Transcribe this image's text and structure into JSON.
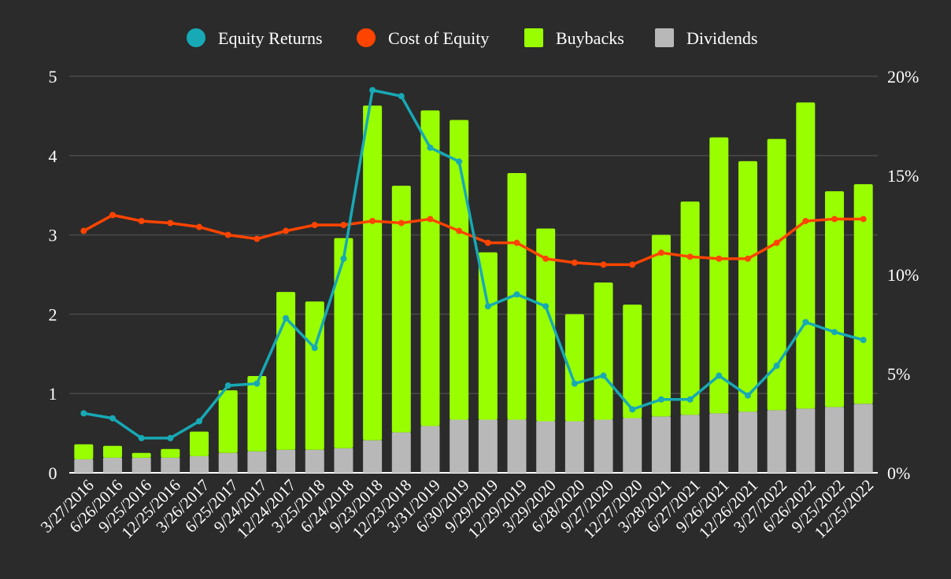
{
  "chart_data": {
    "type": "bar",
    "categories": [
      "3/27/2016",
      "6/26/2016",
      "9/25/2016",
      "12/25/2016",
      "3/26/2017",
      "6/25/2017",
      "9/24/2017",
      "12/24/2017",
      "3/25/2018",
      "6/24/2018",
      "9/23/2018",
      "12/23/2018",
      "3/31/2019",
      "6/30/2019",
      "9/29/2019",
      "12/29/2019",
      "3/29/2020",
      "6/28/2020",
      "9/27/2020",
      "12/27/2020",
      "3/28/2021",
      "6/27/2021",
      "9/26/2021",
      "12/26/2021",
      "3/27/2022",
      "6/26/2022",
      "9/25/2022",
      "12/25/2022"
    ],
    "series": [
      {
        "name": "Dividends",
        "type": "bar",
        "axis": "left",
        "color": "#b8b8b8",
        "values": [
          0.17,
          0.19,
          0.19,
          0.19,
          0.21,
          0.25,
          0.27,
          0.29,
          0.29,
          0.31,
          0.41,
          0.51,
          0.59,
          0.67,
          0.67,
          0.67,
          0.65,
          0.65,
          0.67,
          0.69,
          0.71,
          0.73,
          0.75,
          0.77,
          0.79,
          0.81,
          0.83,
          0.87
        ]
      },
      {
        "name": "Buybacks",
        "type": "bar",
        "axis": "left",
        "color": "#99ff00",
        "values": [
          0.19,
          0.15,
          0.06,
          0.11,
          0.31,
          0.79,
          0.95,
          1.99,
          1.87,
          2.65,
          4.22,
          3.11,
          3.98,
          3.78,
          2.11,
          3.11,
          2.43,
          1.35,
          1.73,
          1.43,
          2.29,
          2.69,
          3.48,
          3.16,
          3.42,
          3.86,
          2.72,
          2.77
        ]
      },
      {
        "name": "Equity Returns",
        "type": "line",
        "axis": "right",
        "color": "#17a9b5",
        "values": [
          3.0,
          2.75,
          1.75,
          1.75,
          2.6,
          4.4,
          4.5,
          7.8,
          6.3,
          10.8,
          19.3,
          19.0,
          16.4,
          15.7,
          8.4,
          9.0,
          8.4,
          4.5,
          4.9,
          3.2,
          3.7,
          3.7,
          4.9,
          3.9,
          5.4,
          7.6,
          7.1,
          6.7
        ]
      },
      {
        "name": "Cost of Equity",
        "type": "line",
        "axis": "right",
        "color": "#ff4400",
        "values": [
          12.2,
          13.0,
          12.7,
          12.6,
          12.4,
          12.0,
          11.8,
          12.2,
          12.5,
          12.5,
          12.7,
          12.6,
          12.8,
          12.2,
          11.6,
          11.6,
          10.8,
          10.6,
          10.5,
          10.5,
          11.1,
          10.9,
          10.8,
          10.8,
          11.6,
          12.7,
          12.8,
          12.8
        ]
      }
    ],
    "legend": [
      "Equity Returns",
      "Cost of Equity",
      "Buybacks",
      "Dividends"
    ],
    "legend_position": "top-center",
    "y_left": {
      "min": 0,
      "max": 5,
      "ticks": [
        "0",
        "1",
        "2",
        "3",
        "4",
        "5"
      ]
    },
    "y_right": {
      "min": 0,
      "max": 20,
      "ticks": [
        "0%",
        "5%",
        "10%",
        "15%",
        "20%"
      ]
    },
    "grid": true,
    "colors": {
      "background": "#2b2b2b",
      "grid": "#4a4a4a",
      "text": "#ffffff"
    }
  }
}
